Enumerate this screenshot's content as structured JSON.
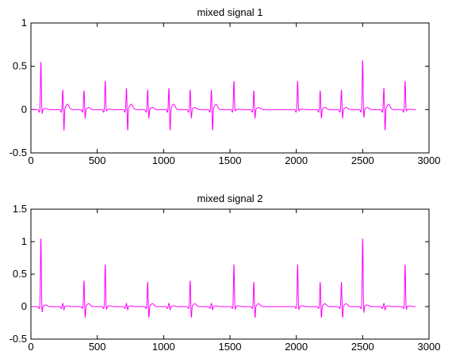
{
  "chart_data": [
    {
      "type": "line",
      "title": "mixed signal 1",
      "xlabel": "",
      "ylabel": "",
      "xlim": [
        0,
        3000
      ],
      "ylim": [
        -0.5,
        1
      ],
      "xticks": [
        0,
        500,
        1000,
        1500,
        2000,
        2500,
        3000
      ],
      "yticks": [
        -0.5,
        0,
        0.5,
        1
      ],
      "xtick_labels": [
        "0",
        "500",
        "1000",
        "1500",
        "2000",
        "2500",
        "3000"
      ],
      "ytick_labels": [
        "-0.5",
        "0",
        "0.5",
        "1"
      ],
      "grid": false,
      "line_color": "#ff00ff",
      "signal_range": [
        0,
        2900
      ],
      "baseline": 0.0,
      "beats": [
        {
          "x": 75,
          "pos": 0.55,
          "neg": -0.05
        },
        {
          "x": 240,
          "pos": 0.23,
          "neg": -0.25
        },
        {
          "x": 400,
          "pos": 0.22,
          "neg": -0.1
        },
        {
          "x": 560,
          "pos": 0.33,
          "neg": -0.02
        },
        {
          "x": 720,
          "pos": 0.25,
          "neg": -0.25
        },
        {
          "x": 880,
          "pos": 0.23,
          "neg": -0.1
        },
        {
          "x": 1040,
          "pos": 0.25,
          "neg": -0.25
        },
        {
          "x": 1200,
          "pos": 0.23,
          "neg": -0.1
        },
        {
          "x": 1360,
          "pos": 0.23,
          "neg": -0.25
        },
        {
          "x": 1530,
          "pos": 0.33,
          "neg": -0.02
        },
        {
          "x": 1680,
          "pos": 0.22,
          "neg": -0.1
        },
        {
          "x": 2010,
          "pos": 0.33,
          "neg": -0.02
        },
        {
          "x": 2180,
          "pos": 0.22,
          "neg": -0.1
        },
        {
          "x": 2340,
          "pos": 0.23,
          "neg": -0.1
        },
        {
          "x": 2500,
          "pos": 0.57,
          "neg": -0.1
        },
        {
          "x": 2660,
          "pos": 0.25,
          "neg": -0.25
        },
        {
          "x": 2820,
          "pos": 0.33,
          "neg": -0.02
        }
      ]
    },
    {
      "type": "line",
      "title": "mixed signal 2",
      "xlabel": "",
      "ylabel": "",
      "xlim": [
        0,
        3000
      ],
      "ylim": [
        -0.5,
        1.5
      ],
      "xticks": [
        0,
        500,
        1000,
        1500,
        2000,
        2500,
        3000
      ],
      "yticks": [
        -0.5,
        0,
        0.5,
        1,
        1.5
      ],
      "xtick_labels": [
        "0",
        "500",
        "1000",
        "1500",
        "2000",
        "2500",
        "3000"
      ],
      "ytick_labels": [
        "-0.5",
        "0",
        "0.5",
        "1",
        "1.5"
      ],
      "grid": false,
      "line_color": "#ff00ff",
      "signal_range": [
        0,
        2900
      ],
      "baseline": 0.0,
      "beats": [
        {
          "x": 75,
          "pos": 1.05,
          "neg": -0.1
        },
        {
          "x": 240,
          "pos": 0.05,
          "neg": -0.05
        },
        {
          "x": 400,
          "pos": 0.4,
          "neg": -0.18
        },
        {
          "x": 560,
          "pos": 0.65,
          "neg": -0.05
        },
        {
          "x": 720,
          "pos": 0.05,
          "neg": -0.05
        },
        {
          "x": 880,
          "pos": 0.38,
          "neg": -0.18
        },
        {
          "x": 1040,
          "pos": 0.05,
          "neg": -0.05
        },
        {
          "x": 1200,
          "pos": 0.4,
          "neg": -0.18
        },
        {
          "x": 1360,
          "pos": 0.05,
          "neg": -0.05
        },
        {
          "x": 1530,
          "pos": 0.65,
          "neg": -0.05
        },
        {
          "x": 1680,
          "pos": 0.38,
          "neg": -0.18
        },
        {
          "x": 2010,
          "pos": 0.65,
          "neg": -0.05
        },
        {
          "x": 2180,
          "pos": 0.38,
          "neg": -0.18
        },
        {
          "x": 2340,
          "pos": 0.38,
          "neg": -0.18
        },
        {
          "x": 2500,
          "pos": 1.05,
          "neg": -0.1
        },
        {
          "x": 2660,
          "pos": 0.05,
          "neg": -0.05
        },
        {
          "x": 2820,
          "pos": 0.65,
          "neg": -0.05
        }
      ]
    }
  ]
}
